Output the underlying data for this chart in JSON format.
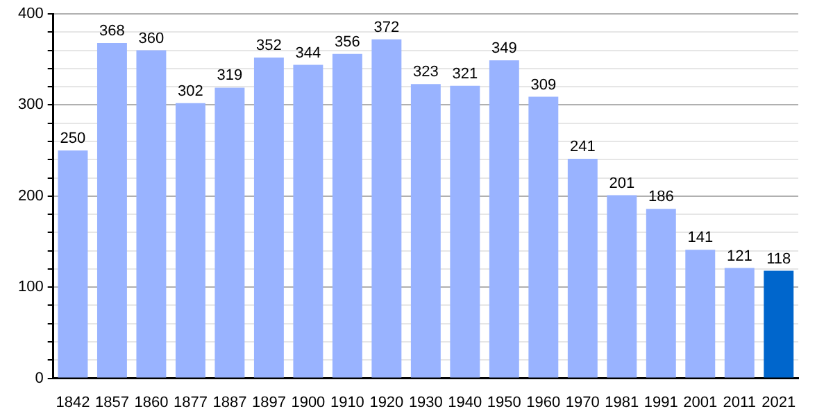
{
  "chart_data": {
    "type": "bar",
    "categories": [
      "1842",
      "1857",
      "1860",
      "1877",
      "1887",
      "1897",
      "1900",
      "1910",
      "1920",
      "1930",
      "1940",
      "1950",
      "1960",
      "1970",
      "1981",
      "1991",
      "2001",
      "2011",
      "2021"
    ],
    "values": [
      250,
      368,
      360,
      302,
      319,
      352,
      344,
      356,
      372,
      323,
      321,
      349,
      309,
      241,
      201,
      186,
      141,
      121,
      118
    ],
    "colors": [
      "#99b3ff",
      "#99b3ff",
      "#99b3ff",
      "#99b3ff",
      "#99b3ff",
      "#99b3ff",
      "#99b3ff",
      "#99b3ff",
      "#99b3ff",
      "#99b3ff",
      "#99b3ff",
      "#99b3ff",
      "#99b3ff",
      "#99b3ff",
      "#99b3ff",
      "#99b3ff",
      "#99b3ff",
      "#99b3ff",
      "#0066cc"
    ],
    "ylim": [
      0,
      400
    ],
    "yticks": [
      0,
      {
        "value": 20,
        "label": null
      },
      {
        "value": 40,
        "label": null
      },
      {
        "value": 60,
        "label": null
      },
      {
        "value": 80,
        "label": null
      },
      100,
      {
        "value": 120,
        "label": null
      },
      {
        "value": 140,
        "label": null
      },
      {
        "value": 160,
        "label": null
      },
      {
        "value": 180,
        "label": null
      },
      200,
      {
        "value": 220,
        "label": null
      },
      {
        "value": 240,
        "label": null
      },
      {
        "value": 260,
        "label": null
      },
      {
        "value": 280,
        "label": null
      },
      300,
      {
        "value": 320,
        "label": null
      },
      {
        "value": 340,
        "label": null
      },
      {
        "value": 360,
        "label": null
      },
      {
        "value": 380,
        "label": null
      },
      400
    ],
    "grid": true,
    "data_labels": true
  }
}
